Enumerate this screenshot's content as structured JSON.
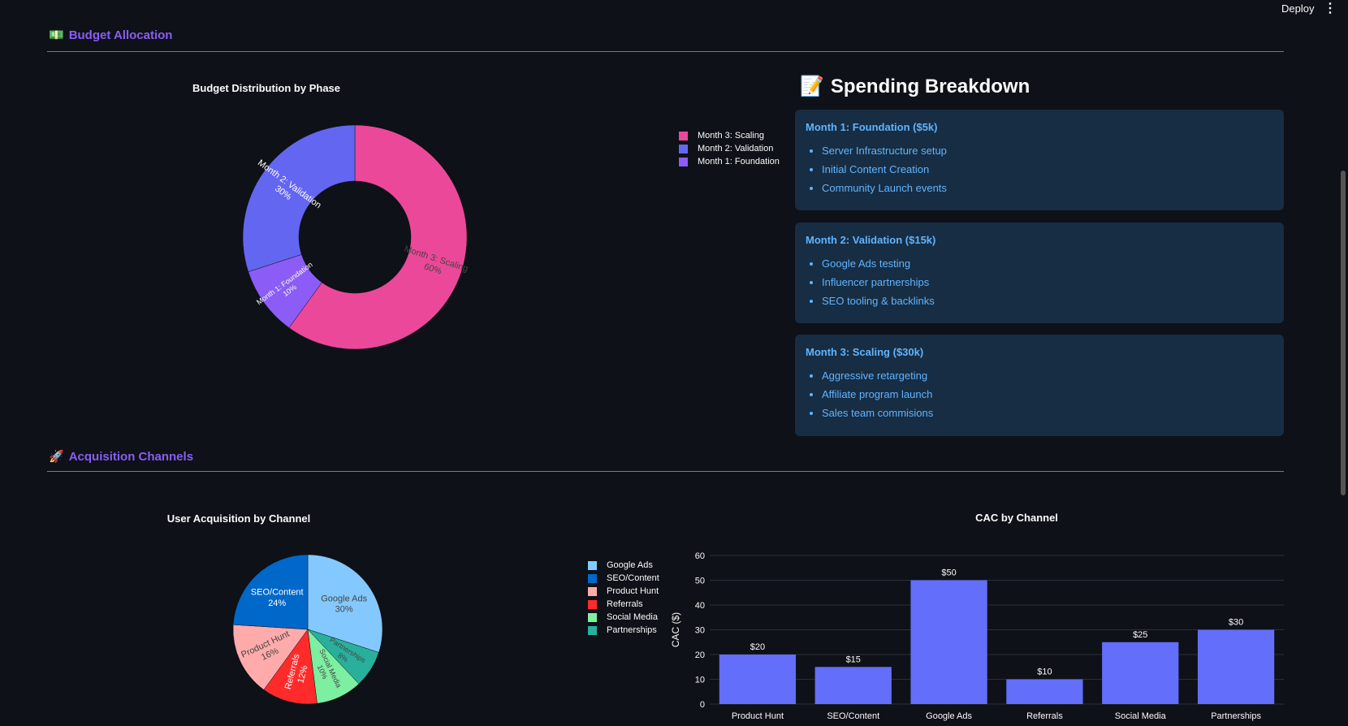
{
  "header": {
    "deploy": "Deploy",
    "menu": "⋮"
  },
  "budget_section": {
    "icon": "💵",
    "title": "Budget Allocation"
  },
  "acq_section": {
    "icon": "🚀",
    "title": "Acquisition Channels"
  },
  "spending": {
    "icon": "📝",
    "title": "Spending Breakdown",
    "cards": [
      {
        "title": "Month 1: Foundation ($5k)",
        "items": [
          "Server Infrastructure setup",
          "Initial Content Creation",
          "Community Launch events"
        ]
      },
      {
        "title": "Month 2: Validation ($15k)",
        "items": [
          "Google Ads testing",
          "Influencer partnerships",
          "SEO tooling & backlinks"
        ]
      },
      {
        "title": "Month 3: Scaling ($30k)",
        "items": [
          "Aggressive retargeting",
          "Affiliate program launch",
          "Sales team commisions"
        ]
      }
    ]
  },
  "chart_data": [
    {
      "type": "pie",
      "hole": 0.5,
      "title": "Budget Distribution by Phase",
      "labels": [
        "Month 3: Scaling",
        "Month 1: Foundation",
        "Month 2: Validation"
      ],
      "values": [
        60,
        10,
        30
      ],
      "colors": [
        "#ec4899",
        "#8b5cf6",
        "#6366f1"
      ],
      "text": [
        "Month 3: Scaling\n60%",
        "Month 1: Foundation\n10%",
        "Month 2: Validation\n30%"
      ],
      "legend": [
        "Month 3: Scaling",
        "Month 2: Validation",
        "Month 1: Foundation"
      ],
      "legend_colors": [
        "#ec4899",
        "#6366f1",
        "#8b5cf6"
      ],
      "legend_position": "right"
    },
    {
      "type": "pie",
      "title": "User Acquisition by Channel",
      "labels": [
        "Google Ads",
        "Partnerships",
        "Social Media",
        "Referrals",
        "Product Hunt",
        "SEO/Content"
      ],
      "values": [
        30,
        8,
        10,
        12,
        16,
        24
      ],
      "colors": [
        "#83c9ff",
        "#29b09d",
        "#7defa1",
        "#ff2b2b",
        "#ffabab",
        "#0068c9"
      ],
      "legend": [
        "Google Ads",
        "SEO/Content",
        "Product Hunt",
        "Referrals",
        "Social Media",
        "Partnerships"
      ],
      "legend_colors": [
        "#83c9ff",
        "#0068c9",
        "#ffabab",
        "#ff2b2b",
        "#7defa1",
        "#29b09d"
      ],
      "legend_position": "right"
    },
    {
      "type": "bar",
      "title": "CAC by Channel",
      "ylabel": "CAC ($)",
      "categories": [
        "Product Hunt",
        "SEO/Content",
        "Google Ads",
        "Referrals",
        "Social Media",
        "Partnerships"
      ],
      "values": [
        20,
        15,
        50,
        10,
        25,
        30
      ],
      "data_labels": [
        "$20",
        "$15",
        "$50",
        "$10",
        "$25",
        "$30"
      ],
      "ylim": [
        0,
        60
      ],
      "yticks": [
        0,
        10,
        20,
        30,
        40,
        50,
        60
      ],
      "grid": true,
      "color": "#636efa"
    }
  ]
}
